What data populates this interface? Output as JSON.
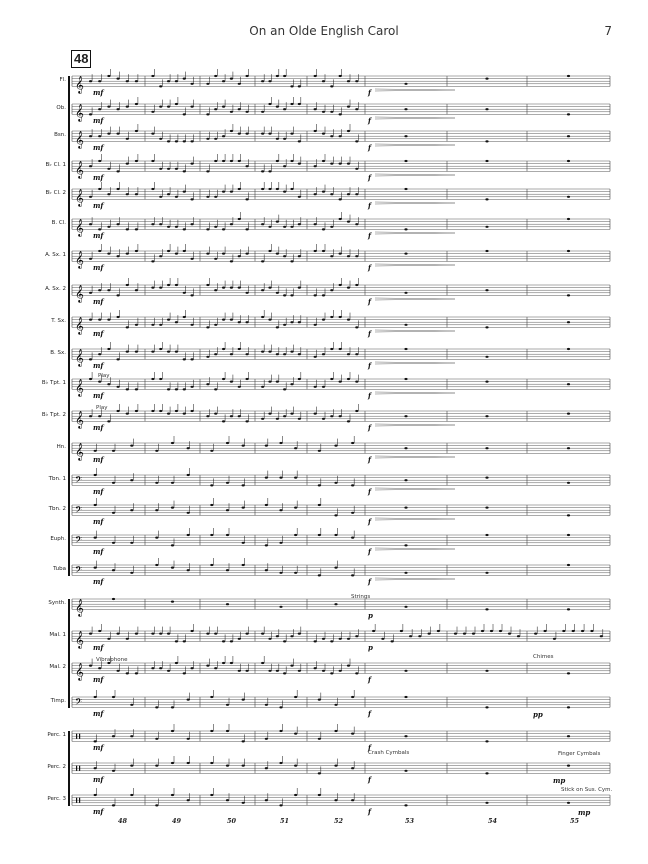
{
  "header": {
    "title": "On an Olde English Carol",
    "page_number": "7"
  },
  "rehearsal_mark": "48",
  "instruments": [
    {
      "label": "Fl.",
      "clef": "treble"
    },
    {
      "label": "Ob.",
      "clef": "treble"
    },
    {
      "label": "Bsn.",
      "clef": "treble"
    },
    {
      "label": "B♭ Cl. 1",
      "clef": "treble"
    },
    {
      "label": "B♭ Cl. 2",
      "clef": "treble"
    },
    {
      "label": "B. Cl.",
      "clef": "treble"
    },
    {
      "label": "A. Sx. 1",
      "clef": "treble"
    },
    {
      "label": "A. Sx. 2",
      "clef": "treble"
    },
    {
      "label": "T. Sx.",
      "clef": "treble"
    },
    {
      "label": "B. Sx.",
      "clef": "treble"
    },
    {
      "label": "B♭ Tpt. 1",
      "clef": "treble"
    },
    {
      "label": "B♭ Tpt. 2",
      "clef": "treble"
    },
    {
      "label": "Hn.",
      "clef": "treble"
    },
    {
      "label": "Tbn. 1",
      "clef": "bass"
    },
    {
      "label": "Tbn. 2",
      "clef": "bass"
    },
    {
      "label": "Euph.",
      "clef": "bass"
    },
    {
      "label": "Tuba",
      "clef": "bass"
    },
    {
      "label": "Synth.",
      "clef": "treble"
    },
    {
      "label": "Mal. 1",
      "clef": "treble"
    },
    {
      "label": "Mal. 2",
      "clef": "treble"
    },
    {
      "label": "Timp.",
      "clef": "bass"
    },
    {
      "label": "Perc. 1",
      "clef": "percussion"
    },
    {
      "label": "Perc. 2",
      "clef": "percussion"
    },
    {
      "label": "Perc. 3",
      "clef": "percussion"
    }
  ],
  "annotations": {
    "play_1": "Play",
    "play_2": "Play",
    "strings": "Strings",
    "vibraphone": "Vibraphone",
    "chimes": "Chimes",
    "crash_cymbals": "Crash Cymbals",
    "finger_cymbals": "Finger Cymbals",
    "stick_sus_cym": "Stick on Sus. Cym."
  },
  "dynamics": {
    "mf": "mf",
    "f": "f",
    "p": "p",
    "pp": "pp",
    "mp": "mp"
  },
  "measure_numbers": [
    "48",
    "49",
    "50",
    "51",
    "52",
    "53",
    "54",
    "55"
  ]
}
